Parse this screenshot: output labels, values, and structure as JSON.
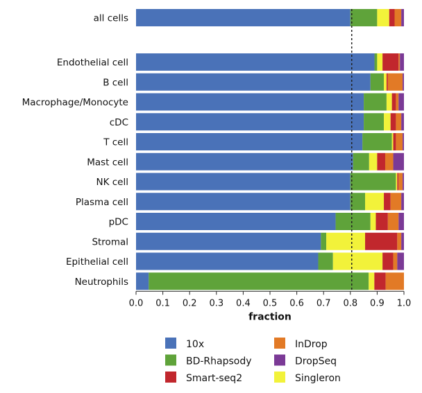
{
  "chart_data": {
    "type": "bar",
    "orientation": "horizontal",
    "stacked": true,
    "xlabel": "fraction",
    "xlim": [
      0,
      1
    ],
    "xticks": [
      "0.0",
      "0.1",
      "0.2",
      "0.3",
      "0.4",
      "0.5",
      "0.6",
      "0.7",
      "0.8",
      "0.9",
      "1.0"
    ],
    "reference_line_x": 0.805,
    "legend_position": "bottom",
    "series": [
      {
        "name": "10x",
        "color": "#4a72b8"
      },
      {
        "name": "BD-Rhapsody",
        "color": "#5fa33a"
      },
      {
        "name": "Singleron",
        "color": "#f2f23a"
      },
      {
        "name": "Smart-seq2",
        "color": "#c1272d"
      },
      {
        "name": "InDrop",
        "color": "#e27a26"
      },
      {
        "name": "DropSeq",
        "color": "#7b3a96"
      }
    ],
    "legend_order": [
      "10x",
      "BD-Rhapsody",
      "Smart-seq2",
      "InDrop",
      "DropSeq",
      "Singleron"
    ],
    "categories": [
      {
        "name": "all cells",
        "values": [
          0.8,
          0.1,
          0.045,
          0.02,
          0.025,
          0.01
        ]
      },
      {
        "name": "Endothelial cell",
        "values": [
          0.89,
          0.01,
          0.02,
          0.06,
          0.005,
          0.015
        ]
      },
      {
        "name": "B cell",
        "values": [
          0.875,
          0.05,
          0.01,
          0.005,
          0.055,
          0.005
        ]
      },
      {
        "name": "Macrophage/Monocyte",
        "values": [
          0.85,
          0.085,
          0.02,
          0.015,
          0.01,
          0.02
        ]
      },
      {
        "name": "cDC",
        "values": [
          0.85,
          0.075,
          0.025,
          0.02,
          0.02,
          0.01
        ]
      },
      {
        "name": "T cell",
        "values": [
          0.845,
          0.11,
          0.005,
          0.01,
          0.025,
          0.005
        ]
      },
      {
        "name": "Mast cell",
        "values": [
          0.81,
          0.06,
          0.03,
          0.03,
          0.03,
          0.04
        ]
      },
      {
        "name": "NK cell",
        "values": [
          0.8,
          0.17,
          0.005,
          0.005,
          0.015,
          0.005
        ]
      },
      {
        "name": "Plasma cell",
        "values": [
          0.8,
          0.055,
          0.07,
          0.025,
          0.04,
          0.01
        ]
      },
      {
        "name": "pDC",
        "values": [
          0.745,
          0.13,
          0.02,
          0.045,
          0.04,
          0.02
        ]
      },
      {
        "name": "Stromal",
        "values": [
          0.69,
          0.02,
          0.145,
          0.12,
          0.015,
          0.01
        ]
      },
      {
        "name": "Epithelial cell",
        "values": [
          0.68,
          0.055,
          0.185,
          0.04,
          0.015,
          0.025
        ]
      },
      {
        "name": "Neutrophils",
        "values": [
          0.045,
          0.78,
          0.02,
          0.04,
          0.065,
          0.0
        ]
      }
    ]
  }
}
